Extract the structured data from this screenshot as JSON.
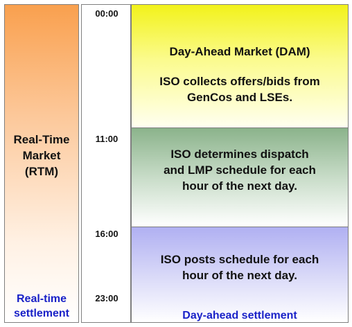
{
  "rtm": {
    "label_line1": "Real-Time",
    "label_line2": "Market",
    "label_line3": "(RTM)",
    "settlement_line1": "Real-time",
    "settlement_line2": "settlement"
  },
  "timeline": {
    "t1": "00:00",
    "t2": "11:00",
    "t3": "16:00",
    "t4": "23:00"
  },
  "dam": {
    "title": "Day-Ahead Market (DAM)",
    "seg1_line1": "ISO collects offers/bids from",
    "seg1_line2": "GenCos and LSEs.",
    "seg2_line1": "ISO determines dispatch",
    "seg2_line2": "and LMP schedule for each",
    "seg2_line3": "hour of the next day.",
    "seg3_line1": "ISO posts schedule for each",
    "seg3_line2": "hour of the next day.",
    "settlement": "Day-ahead settlement"
  },
  "colors": {
    "rtm_top": "#f9a04e",
    "seg1_top": "#f2f21a",
    "seg2_top": "#8bb38b",
    "seg3_top": "#b0b0f2",
    "settlement_text": "#1a22c8"
  }
}
